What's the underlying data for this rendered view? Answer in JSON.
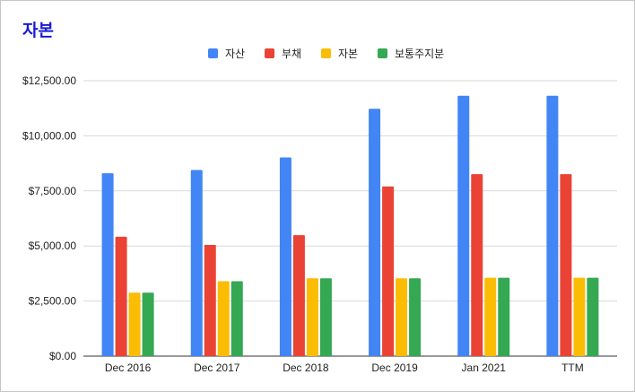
{
  "chart_data": {
    "type": "bar",
    "title": "자본",
    "categories": [
      "Dec 2016",
      "Dec 2017",
      "Dec 2018",
      "Dec 2019",
      "Jan 2021",
      "TTM"
    ],
    "series": [
      {
        "name": "자산",
        "color": "#4285f4",
        "values": [
          8300,
          8450,
          9020,
          11230,
          11820,
          11820
        ]
      },
      {
        "name": "부채",
        "color": "#ea4335",
        "values": [
          5420,
          5050,
          5490,
          7700,
          8260,
          8260
        ]
      },
      {
        "name": "자본",
        "color": "#fbbc04",
        "values": [
          2880,
          3400,
          3530,
          3530,
          3560,
          3560
        ]
      },
      {
        "name": "보통주지분",
        "color": "#34a853",
        "values": [
          2880,
          3400,
          3530,
          3530,
          3560,
          3560
        ]
      }
    ],
    "ylim": [
      0,
      12500
    ],
    "yticks": [
      "$0.00",
      "$2,500.00",
      "$5,000.00",
      "$7,500.00",
      "$10,000.00",
      "$12,500.00"
    ],
    "ytick_values": [
      0,
      2500,
      5000,
      7500,
      10000,
      12500
    ],
    "grid": true,
    "legend_position": "top-center"
  }
}
